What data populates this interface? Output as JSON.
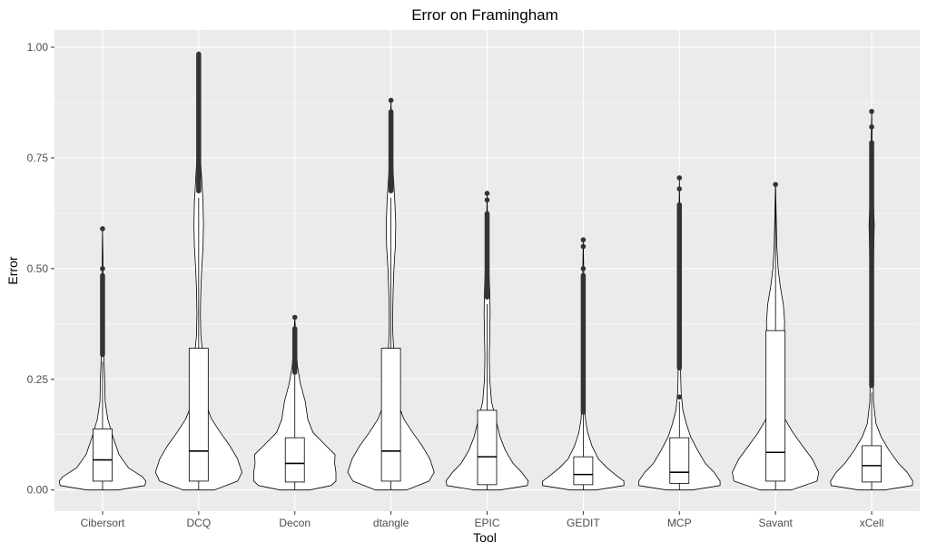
{
  "chart_data": {
    "type": "violin",
    "title": "Error on Framingham",
    "xlabel": "Tool",
    "ylabel": "Error",
    "ylim": [
      -0.045,
      1.03
    ],
    "yticks": [
      0.0,
      0.25,
      0.5,
      0.75,
      1.0
    ],
    "ytick_labels": [
      "0.00",
      "0.25",
      "0.50",
      "0.75",
      "1.00"
    ],
    "grid": true,
    "legend": "none",
    "colors": {
      "panel": "#ebebeb",
      "grid_major": "#ffffff",
      "violin_fill": "#ffffff",
      "outline": "#000000",
      "outlier": "#333333"
    },
    "categories": [
      "Cibersort",
      "DCQ",
      "Decon",
      "dtangle",
      "EPIC",
      "GEDIT",
      "MCP",
      "Savant",
      "xCell"
    ],
    "series": [
      {
        "category": "Cibersort",
        "box": {
          "q1": 0.02,
          "median": 0.068,
          "q3": 0.138,
          "whisker_low": 0.0,
          "whisker_high": 0.29
        },
        "outliers": {
          "from": 0.3,
          "to": 0.49,
          "isolated": [
            0.5,
            0.59
          ]
        },
        "violin": {
          "ymin": 0.0,
          "ymax": 0.59,
          "profile": [
            [
              0.0,
              0.36
            ],
            [
              0.01,
              0.98
            ],
            [
              0.02,
              1.0
            ],
            [
              0.03,
              0.92
            ],
            [
              0.05,
              0.6
            ],
            [
              0.08,
              0.38
            ],
            [
              0.12,
              0.24
            ],
            [
              0.16,
              0.12
            ],
            [
              0.2,
              0.06
            ],
            [
              0.25,
              0.05
            ],
            [
              0.3,
              0.03
            ],
            [
              0.36,
              0.03
            ],
            [
              0.45,
              0.02
            ],
            [
              0.52,
              0.01
            ],
            [
              0.59,
              0.0
            ]
          ]
        }
      },
      {
        "category": "DCQ",
        "box": {
          "q1": 0.02,
          "median": 0.088,
          "q3": 0.32,
          "whisker_low": 0.0,
          "whisker_high": 0.66
        },
        "outliers": {
          "from": 0.67,
          "to": 0.99,
          "isolated": []
        },
        "violin": {
          "ymin": 0.0,
          "ymax": 0.99,
          "profile": [
            [
              0.0,
              0.36
            ],
            [
              0.02,
              0.9
            ],
            [
              0.04,
              1.0
            ],
            [
              0.07,
              0.9
            ],
            [
              0.1,
              0.72
            ],
            [
              0.13,
              0.5
            ],
            [
              0.16,
              0.3
            ],
            [
              0.19,
              0.18
            ],
            [
              0.22,
              0.13
            ],
            [
              0.25,
              0.14
            ],
            [
              0.28,
              0.14
            ],
            [
              0.31,
              0.09
            ],
            [
              0.35,
              0.05
            ],
            [
              0.4,
              0.04
            ],
            [
              0.45,
              0.05
            ],
            [
              0.5,
              0.07
            ],
            [
              0.55,
              0.1
            ],
            [
              0.6,
              0.11
            ],
            [
              0.65,
              0.1
            ],
            [
              0.7,
              0.07
            ],
            [
              0.75,
              0.04
            ],
            [
              0.8,
              0.02
            ],
            [
              0.9,
              0.01
            ],
            [
              0.99,
              0.0
            ]
          ]
        }
      },
      {
        "category": "Decon",
        "box": {
          "q1": 0.018,
          "median": 0.06,
          "q3": 0.118,
          "whisker_low": 0.0,
          "whisker_high": 0.26
        },
        "outliers": {
          "from": 0.26,
          "to": 0.37,
          "isolated": [
            0.39
          ]
        },
        "violin": {
          "ymin": 0.0,
          "ymax": 0.39,
          "profile": [
            [
              0.0,
              0.34
            ],
            [
              0.01,
              0.84
            ],
            [
              0.02,
              0.95
            ],
            [
              0.04,
              0.95
            ],
            [
              0.06,
              0.92
            ],
            [
              0.08,
              0.93
            ],
            [
              0.1,
              0.72
            ],
            [
              0.13,
              0.42
            ],
            [
              0.16,
              0.3
            ],
            [
              0.2,
              0.24
            ],
            [
              0.24,
              0.13
            ],
            [
              0.28,
              0.06
            ],
            [
              0.33,
              0.03
            ],
            [
              0.39,
              0.0
            ]
          ]
        }
      },
      {
        "category": "dtangle",
        "box": {
          "q1": 0.02,
          "median": 0.088,
          "q3": 0.32,
          "whisker_low": 0.0,
          "whisker_high": 0.66
        },
        "outliers": {
          "from": 0.67,
          "to": 0.86,
          "isolated": [
            0.88
          ]
        },
        "violin": {
          "ymin": 0.0,
          "ymax": 0.88,
          "profile": [
            [
              0.0,
              0.36
            ],
            [
              0.02,
              0.88
            ],
            [
              0.04,
              1.0
            ],
            [
              0.07,
              0.9
            ],
            [
              0.1,
              0.72
            ],
            [
              0.13,
              0.5
            ],
            [
              0.16,
              0.3
            ],
            [
              0.19,
              0.18
            ],
            [
              0.22,
              0.13
            ],
            [
              0.25,
              0.12
            ],
            [
              0.28,
              0.1
            ],
            [
              0.32,
              0.06
            ],
            [
              0.36,
              0.04
            ],
            [
              0.4,
              0.04
            ],
            [
              0.45,
              0.05
            ],
            [
              0.5,
              0.07
            ],
            [
              0.55,
              0.1
            ],
            [
              0.6,
              0.11
            ],
            [
              0.65,
              0.09
            ],
            [
              0.7,
              0.06
            ],
            [
              0.75,
              0.03
            ],
            [
              0.8,
              0.02
            ],
            [
              0.88,
              0.0
            ]
          ]
        }
      },
      {
        "category": "EPIC",
        "box": {
          "q1": 0.012,
          "median": 0.075,
          "q3": 0.18,
          "whisker_low": 0.0,
          "whisker_high": 0.42
        },
        "outliers": {
          "from": 0.43,
          "to": 0.63,
          "isolated": [
            0.655,
            0.67
          ]
        },
        "violin": {
          "ymin": 0.0,
          "ymax": 0.67,
          "profile": [
            [
              0.0,
              0.3
            ],
            [
              0.01,
              0.93
            ],
            [
              0.02,
              0.95
            ],
            [
              0.04,
              0.8
            ],
            [
              0.06,
              0.6
            ],
            [
              0.09,
              0.42
            ],
            [
              0.12,
              0.3
            ],
            [
              0.16,
              0.2
            ],
            [
              0.2,
              0.1
            ],
            [
              0.25,
              0.06
            ],
            [
              0.3,
              0.05
            ],
            [
              0.35,
              0.06
            ],
            [
              0.4,
              0.07
            ],
            [
              0.45,
              0.06
            ],
            [
              0.5,
              0.04
            ],
            [
              0.55,
              0.02
            ],
            [
              0.6,
              0.01
            ],
            [
              0.67,
              0.0
            ]
          ]
        }
      },
      {
        "category": "GEDIT",
        "box": {
          "q1": 0.012,
          "median": 0.035,
          "q3": 0.075,
          "whisker_low": 0.0,
          "whisker_high": 0.17
        },
        "outliers": {
          "from": 0.17,
          "to": 0.49,
          "isolated": [
            0.5,
            0.55,
            0.565
          ]
        },
        "violin": {
          "ymin": 0.0,
          "ymax": 0.565,
          "profile": [
            [
              0.0,
              0.3
            ],
            [
              0.01,
              0.94
            ],
            [
              0.02,
              0.94
            ],
            [
              0.03,
              0.8
            ],
            [
              0.05,
              0.55
            ],
            [
              0.07,
              0.35
            ],
            [
              0.1,
              0.2
            ],
            [
              0.13,
              0.1
            ],
            [
              0.16,
              0.05
            ],
            [
              0.2,
              0.03
            ],
            [
              0.3,
              0.02
            ],
            [
              0.4,
              0.02
            ],
            [
              0.5,
              0.01
            ],
            [
              0.565,
              0.0
            ]
          ]
        }
      },
      {
        "category": "MCP",
        "box": {
          "q1": 0.015,
          "median": 0.04,
          "q3": 0.118,
          "whisker_low": 0.0,
          "whisker_high": 0.2
        },
        "outliers": {
          "from": 0.27,
          "to": 0.65,
          "isolated": [
            0.21,
            0.68,
            0.705
          ]
        },
        "violin": {
          "ymin": 0.0,
          "ymax": 0.705,
          "profile": [
            [
              0.0,
              0.3
            ],
            [
              0.01,
              0.94
            ],
            [
              0.02,
              0.94
            ],
            [
              0.04,
              0.8
            ],
            [
              0.06,
              0.6
            ],
            [
              0.09,
              0.42
            ],
            [
              0.12,
              0.26
            ],
            [
              0.15,
              0.16
            ],
            [
              0.18,
              0.08
            ],
            [
              0.22,
              0.04
            ],
            [
              0.3,
              0.02
            ],
            [
              0.4,
              0.02
            ],
            [
              0.5,
              0.02
            ],
            [
              0.6,
              0.01
            ],
            [
              0.705,
              0.0
            ]
          ]
        }
      },
      {
        "category": "Savant",
        "box": {
          "q1": 0.02,
          "median": 0.085,
          "q3": 0.36,
          "whisker_low": 0.0,
          "whisker_high": 0.69
        },
        "outliers": {
          "from": 0.69,
          "to": 0.69,
          "isolated": []
        },
        "violin": {
          "ymin": 0.0,
          "ymax": 0.69,
          "profile": [
            [
              0.0,
              0.36
            ],
            [
              0.02,
              0.96
            ],
            [
              0.04,
              1.0
            ],
            [
              0.07,
              0.85
            ],
            [
              0.1,
              0.62
            ],
            [
              0.13,
              0.4
            ],
            [
              0.16,
              0.22
            ],
            [
              0.2,
              0.1
            ],
            [
              0.25,
              0.08
            ],
            [
              0.3,
              0.14
            ],
            [
              0.35,
              0.2
            ],
            [
              0.38,
              0.21
            ],
            [
              0.42,
              0.18
            ],
            [
              0.46,
              0.11
            ],
            [
              0.5,
              0.06
            ],
            [
              0.55,
              0.03
            ],
            [
              0.6,
              0.02
            ],
            [
              0.69,
              0.0
            ]
          ]
        }
      },
      {
        "category": "xCell",
        "box": {
          "q1": 0.018,
          "median": 0.055,
          "q3": 0.1,
          "whisker_low": 0.0,
          "whisker_high": 0.22
        },
        "outliers": {
          "from": 0.23,
          "to": 0.79,
          "isolated": [
            0.82,
            0.855
          ]
        },
        "violin": {
          "ymin": 0.0,
          "ymax": 0.855,
          "profile": [
            [
              0.0,
              0.3
            ],
            [
              0.01,
              0.94
            ],
            [
              0.02,
              0.95
            ],
            [
              0.04,
              0.82
            ],
            [
              0.06,
              0.62
            ],
            [
              0.09,
              0.4
            ],
            [
              0.12,
              0.22
            ],
            [
              0.15,
              0.1
            ],
            [
              0.2,
              0.04
            ],
            [
              0.3,
              0.03
            ],
            [
              0.45,
              0.03
            ],
            [
              0.55,
              0.05
            ],
            [
              0.6,
              0.06
            ],
            [
              0.65,
              0.04
            ],
            [
              0.7,
              0.02
            ],
            [
              0.8,
              0.01
            ],
            [
              0.855,
              0.0
            ]
          ]
        }
      }
    ]
  }
}
